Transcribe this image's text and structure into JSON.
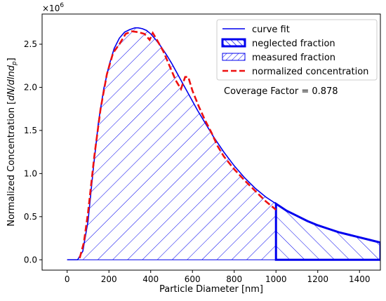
{
  "chart_data": {
    "type": "area",
    "title": "",
    "xlabel": "Particle Diameter [nm]",
    "ylabel_prefix": "Normalized Concentration [",
    "ylabel_math": "dN/dlnd",
    "ylabel_sub": "p",
    "ylabel_suffix": "]",
    "y_multiplier_base": "×10",
    "y_multiplier_exp": "6",
    "xlim": [
      -120,
      1500
    ],
    "ylim": [
      -0.12,
      2.85
    ],
    "x_ticks": [
      0,
      200,
      400,
      600,
      800,
      1000,
      1200,
      1400
    ],
    "x_tick_labels": [
      "0",
      "200",
      "400",
      "600",
      "800",
      "1000",
      "1200",
      "1400"
    ],
    "y_ticks": [
      0.0,
      0.5,
      1.0,
      1.5,
      2.0,
      2.5
    ],
    "y_tick_labels": [
      "0.0",
      "0.5",
      "1.0",
      "1.5",
      "2.0",
      "2.5"
    ],
    "cutoff_x": 1000,
    "legend_position": "top-right",
    "legend": [
      {
        "label": "curve fit",
        "style": "line",
        "color": "#0000ee"
      },
      {
        "label": "neglected fraction",
        "style": "hatch-thick",
        "color": "#0000ee"
      },
      {
        "label": "measured fraction",
        "style": "hatch",
        "color": "#0000ee"
      },
      {
        "label": "normalized concentration",
        "style": "dashed",
        "color": "#ee1111"
      }
    ],
    "annotation": "Coverage Factor = 0.878",
    "series": [
      {
        "name": "curve fit",
        "color": "#0000ee",
        "x": [
          0,
          50,
          75,
          100,
          125,
          150,
          175,
          200,
          225,
          250,
          275,
          300,
          325,
          340,
          360,
          380,
          400,
          425,
          450,
          475,
          500,
          525,
          550,
          575,
          600,
          625,
          650,
          700,
          750,
          800,
          850,
          900,
          950,
          1000,
          1050,
          1100,
          1150,
          1200,
          1250,
          1300,
          1350,
          1400,
          1450,
          1500
        ],
        "y": [
          0.0,
          0.0,
          0.1,
          0.45,
          1.05,
          1.6,
          1.98,
          2.25,
          2.45,
          2.57,
          2.64,
          2.67,
          2.69,
          2.69,
          2.68,
          2.66,
          2.62,
          2.55,
          2.47,
          2.38,
          2.28,
          2.17,
          2.06,
          1.95,
          1.84,
          1.73,
          1.63,
          1.43,
          1.25,
          1.09,
          0.95,
          0.83,
          0.73,
          0.65,
          0.57,
          0.51,
          0.45,
          0.4,
          0.36,
          0.32,
          0.29,
          0.26,
          0.23,
          0.2
        ]
      },
      {
        "name": "normalized concentration",
        "color": "#ee1111",
        "x": [
          60,
          80,
          100,
          130,
          160,
          190,
          220,
          250,
          280,
          310,
          340,
          370,
          395,
          410,
          430,
          460,
          490,
          520,
          545,
          565,
          580,
          600,
          630,
          660,
          690,
          720,
          750,
          800,
          850,
          900,
          950,
          1000
        ],
        "y": [
          0.02,
          0.2,
          0.55,
          1.2,
          1.75,
          2.15,
          2.4,
          2.5,
          2.62,
          2.65,
          2.64,
          2.62,
          2.55,
          2.63,
          2.55,
          2.42,
          2.25,
          2.08,
          1.98,
          2.12,
          2.12,
          1.96,
          1.78,
          1.62,
          1.48,
          1.32,
          1.2,
          1.05,
          0.92,
          0.8,
          0.68,
          0.58
        ]
      }
    ]
  }
}
